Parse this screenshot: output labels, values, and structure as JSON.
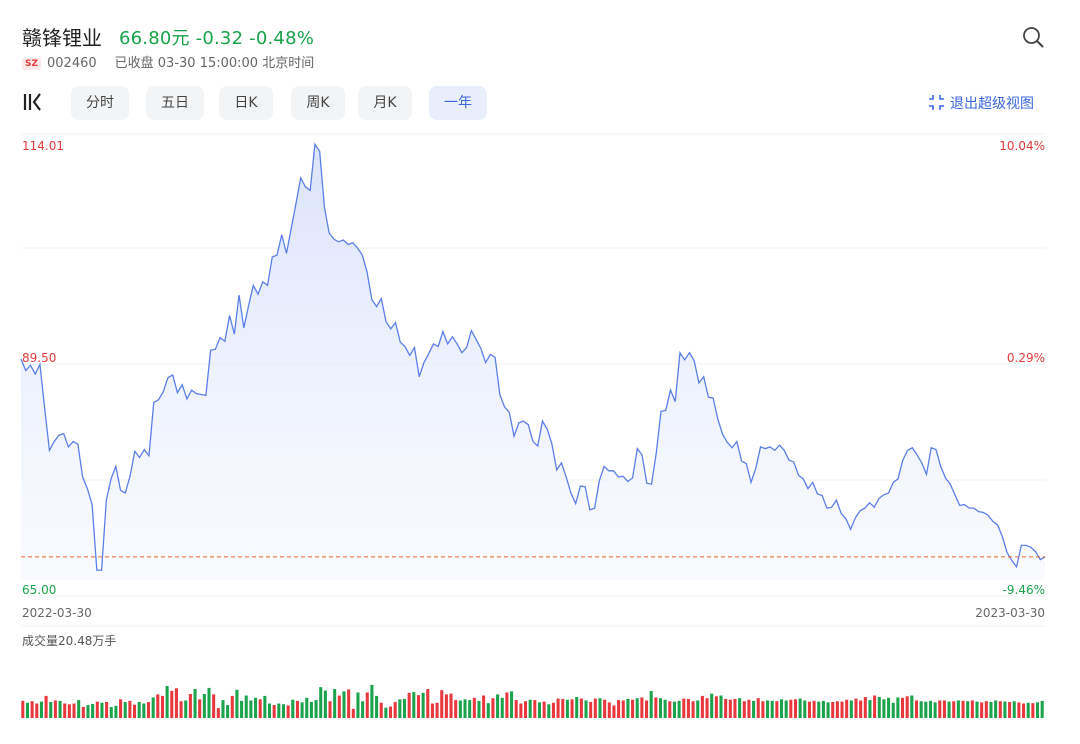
{
  "stock": {
    "name": "赣锋锂业",
    "price_line": "66.80元 -0.32 -0.48%",
    "market": "SZ",
    "code": "002460",
    "status": "已收盘 03-30 15:00:00 北京时间"
  },
  "icons": {
    "search": "search-icon",
    "logo": "kline-logo-icon",
    "fullscreen": "fullscreen-exit-icon"
  },
  "tabs": [
    {
      "label": "分时",
      "active": false
    },
    {
      "label": "五日",
      "active": false
    },
    {
      "label": "日K",
      "active": false
    },
    {
      "label": "周K",
      "active": false
    },
    {
      "label": "月K",
      "active": false
    },
    {
      "label": "一年",
      "active": true
    }
  ],
  "fullscreen_label": "退出超级视图",
  "colors": {
    "line": "#5b7fe8",
    "up": "#e8383d",
    "down": "#1aa34a",
    "accent": "#3b68e0",
    "prev_close_line": "#e8662b"
  },
  "chart_data": {
    "type": "area",
    "title": "",
    "x_start_label": "2022-03-30",
    "x_end_label": "2023-03-30",
    "y_left_labels": {
      "max": "114.01",
      "mid": "89.50",
      "min": "65.00"
    },
    "y_right_labels": {
      "max": "10.04%",
      "mid": "0.29%",
      "min": "-9.46%"
    },
    "ylim": [
      65.0,
      114.01
    ],
    "reference_line": 67.6,
    "grid": true,
    "series": [
      {
        "values": [
          89.9,
          88.6,
          89.2,
          88.2,
          89.3,
          84.3,
          79.6,
          80.6,
          81.3,
          81.5,
          80.0,
          80.6,
          80.3,
          76.6,
          75.3,
          73.5,
          66.1,
          66.1,
          74.0,
          76.4,
          77.8,
          75.1,
          74.8,
          76.7,
          79.5,
          78.8,
          79.7,
          79.0,
          85.0,
          85.3,
          86.2,
          87.8,
          88.1,
          86.1,
          87.0,
          85.4,
          86.4,
          86.0,
          85.9,
          85.8,
          90.9,
          91.0,
          92.3,
          91.9,
          94.8,
          92.7,
          97.1,
          93.4,
          95.9,
          98.2,
          97.2,
          98.6,
          98.2,
          101.4,
          101.6,
          103.9,
          101.8,
          104.6,
          107.4,
          110.3,
          109.3,
          108.9,
          114.1,
          113.3,
          107.0,
          104.1,
          103.4,
          103.1,
          103.3,
          102.8,
          103.0,
          102.4,
          101.6,
          99.7,
          96.6,
          95.8,
          96.7,
          94.1,
          93.3,
          94.0,
          91.8,
          91.3,
          90.3,
          91.2,
          87.9,
          89.5,
          90.5,
          91.6,
          91.3,
          93.0,
          91.6,
          92.4,
          91.6,
          90.6,
          91.2,
          93.1,
          92.1,
          91.1,
          89.5,
          90.4,
          90.1,
          85.9,
          84.5,
          83.9,
          81.2,
          82.7,
          82.9,
          82.5,
          80.6,
          80.1,
          82.9,
          82.0,
          80.3,
          77.4,
          78.2,
          76.6,
          74.8,
          73.6,
          75.6,
          75.5,
          72.9,
          73.1,
          76.2,
          77.8,
          77.3,
          77.3,
          76.6,
          76.7,
          76.1,
          76.5,
          79.8,
          79.1,
          75.9,
          75.8,
          79.3,
          84.0,
          84.1,
          86.4,
          85.1,
          90.6,
          89.8,
          90.6,
          89.7,
          87.2,
          87.9,
          85.6,
          85.5,
          83.1,
          81.4,
          80.5,
          79.9,
          80.6,
          78.4,
          78.1,
          76.0,
          77.6,
          80.0,
          79.8,
          80.0,
          79.6,
          80.2,
          79.6,
          78.5,
          78.3,
          76.8,
          76.4,
          75.3,
          76.0,
          74.7,
          74.5,
          73.1,
          73.2,
          74.0,
          72.5,
          71.9,
          70.7,
          72.0,
          72.8,
          73.1,
          73.7,
          73.2,
          74.2,
          74.6,
          74.8,
          76.0,
          76.4,
          78.5,
          79.6,
          79.9,
          79.1,
          78.2,
          76.9,
          79.9,
          79.7,
          77.8,
          76.5,
          75.8,
          74.6,
          73.4,
          73.5,
          73.1,
          73.1,
          72.7,
          72.6,
          72.3,
          71.6,
          71.2,
          69.9,
          68.1,
          67.2,
          66.5,
          68.9,
          68.9,
          68.7,
          68.2,
          67.3,
          67.6
        ]
      }
    ],
    "volume": {
      "label": "成交量20.48万手",
      "ylim": [
        0,
        20.48
      ],
      "bars": [
        [
          4.5,
          1
        ],
        [
          4.0,
          0
        ],
        [
          4.4,
          1
        ],
        [
          3.8,
          1
        ],
        [
          4.3,
          0
        ],
        [
          5.8,
          1
        ],
        [
          4.2,
          0
        ],
        [
          4.6,
          1
        ],
        [
          4.5,
          0
        ],
        [
          3.8,
          1
        ],
        [
          3.6,
          1
        ],
        [
          3.8,
          1
        ],
        [
          4.7,
          0
        ],
        [
          2.9,
          1
        ],
        [
          3.4,
          0
        ],
        [
          3.7,
          0
        ],
        [
          4.3,
          1
        ],
        [
          4.0,
          0
        ],
        [
          4.2,
          1
        ],
        [
          2.9,
          0
        ],
        [
          3.2,
          0
        ],
        [
          4.9,
          1
        ],
        [
          4.2,
          0
        ],
        [
          4.5,
          1
        ],
        [
          3.5,
          1
        ],
        [
          4.2,
          0
        ],
        [
          3.8,
          0
        ],
        [
          4.2,
          1
        ],
        [
          5.4,
          0
        ],
        [
          6.2,
          1
        ],
        [
          5.8,
          1
        ],
        [
          8.4,
          0
        ],
        [
          7.1,
          1
        ],
        [
          7.8,
          1
        ],
        [
          4.4,
          1
        ],
        [
          4.6,
          0
        ],
        [
          6.3,
          1
        ],
        [
          7.6,
          0
        ],
        [
          4.9,
          1
        ],
        [
          6.3,
          0
        ],
        [
          7.9,
          0
        ],
        [
          6.2,
          1
        ],
        [
          2.6,
          1
        ],
        [
          4.7,
          0
        ],
        [
          3.4,
          0
        ],
        [
          5.8,
          1
        ],
        [
          7.4,
          0
        ],
        [
          4.5,
          0
        ],
        [
          5.9,
          0
        ],
        [
          4.6,
          0
        ],
        [
          5.3,
          0
        ],
        [
          4.9,
          1
        ],
        [
          5.8,
          0
        ],
        [
          3.8,
          0
        ],
        [
          3.4,
          1
        ],
        [
          3.8,
          0
        ],
        [
          3.6,
          0
        ],
        [
          3.3,
          1
        ],
        [
          4.8,
          0
        ],
        [
          4.5,
          1
        ],
        [
          4.1,
          0
        ],
        [
          5.3,
          0
        ],
        [
          4.2,
          0
        ],
        [
          4.7,
          0
        ],
        [
          8.1,
          0
        ],
        [
          7.2,
          0
        ],
        [
          4.4,
          1
        ],
        [
          7.6,
          0
        ],
        [
          5.9,
          1
        ],
        [
          7.0,
          0
        ],
        [
          7.5,
          1
        ],
        [
          2.4,
          1
        ],
        [
          6.7,
          0
        ],
        [
          4.4,
          0
        ],
        [
          6.7,
          1
        ],
        [
          8.7,
          0
        ],
        [
          5.8,
          0
        ],
        [
          4.0,
          1
        ],
        [
          2.7,
          0
        ],
        [
          3.0,
          1
        ],
        [
          4.2,
          1
        ],
        [
          4.9,
          0
        ],
        [
          5.0,
          0
        ],
        [
          6.6,
          1
        ],
        [
          6.8,
          0
        ],
        [
          6.0,
          1
        ],
        [
          6.6,
          0
        ],
        [
          7.6,
          1
        ],
        [
          3.8,
          1
        ],
        [
          4.0,
          1
        ],
        [
          7.3,
          1
        ],
        [
          6.2,
          1
        ],
        [
          6.4,
          1
        ],
        [
          4.7,
          1
        ],
        [
          4.6,
          0
        ],
        [
          4.9,
          0
        ],
        [
          4.7,
          0
        ],
        [
          5.3,
          1
        ],
        [
          4.5,
          0
        ],
        [
          5.9,
          1
        ],
        [
          3.9,
          0
        ],
        [
          5.2,
          1
        ],
        [
          6.2,
          0
        ],
        [
          5.3,
          0
        ],
        [
          6.7,
          1
        ],
        [
          7.0,
          0
        ],
        [
          4.7,
          1
        ],
        [
          3.8,
          1
        ],
        [
          4.4,
          1
        ],
        [
          4.8,
          0
        ],
        [
          4.7,
          1
        ],
        [
          4.1,
          0
        ],
        [
          4.3,
          1
        ],
        [
          3.6,
          0
        ],
        [
          4.0,
          1
        ],
        [
          5.1,
          1
        ],
        [
          5.0,
          1
        ],
        [
          4.8,
          0
        ],
        [
          4.9,
          1
        ],
        [
          5.5,
          0
        ],
        [
          5.1,
          1
        ],
        [
          4.6,
          0
        ],
        [
          4.2,
          1
        ],
        [
          5.1,
          1
        ],
        [
          5.2,
          0
        ],
        [
          4.8,
          1
        ],
        [
          4.1,
          1
        ],
        [
          3.3,
          1
        ],
        [
          4.7,
          1
        ],
        [
          4.6,
          1
        ],
        [
          5.0,
          0
        ],
        [
          4.8,
          1
        ],
        [
          5.2,
          0
        ],
        [
          5.4,
          1
        ],
        [
          4.6,
          1
        ],
        [
          7.1,
          0
        ],
        [
          5.4,
          1
        ],
        [
          5.2,
          0
        ],
        [
          4.8,
          0
        ],
        [
          4.4,
          1
        ],
        [
          4.3,
          0
        ],
        [
          4.5,
          0
        ],
        [
          5.1,
          1
        ],
        [
          5.0,
          1
        ],
        [
          4.4,
          1
        ],
        [
          4.6,
          0
        ],
        [
          5.8,
          1
        ],
        [
          5.2,
          1
        ],
        [
          6.4,
          0
        ],
        [
          5.7,
          1
        ],
        [
          5.9,
          0
        ],
        [
          5.0,
          1
        ],
        [
          4.8,
          1
        ],
        [
          5.0,
          1
        ],
        [
          5.2,
          0
        ],
        [
          4.4,
          1
        ],
        [
          4.8,
          1
        ],
        [
          4.5,
          0
        ],
        [
          5.2,
          1
        ],
        [
          4.4,
          1
        ],
        [
          4.6,
          0
        ],
        [
          4.5,
          0
        ],
        [
          4.4,
          1
        ],
        [
          4.9,
          0
        ],
        [
          4.6,
          0
        ],
        [
          4.8,
          1
        ],
        [
          4.9,
          1
        ],
        [
          5.1,
          0
        ],
        [
          4.6,
          0
        ],
        [
          4.3,
          1
        ],
        [
          4.5,
          1
        ],
        [
          4.3,
          0
        ],
        [
          4.5,
          0
        ],
        [
          4.1,
          0
        ],
        [
          4.2,
          1
        ],
        [
          4.4,
          1
        ],
        [
          4.3,
          1
        ],
        [
          4.8,
          1
        ],
        [
          4.6,
          0
        ],
        [
          5.1,
          1
        ],
        [
          4.6,
          1
        ],
        [
          5.5,
          1
        ],
        [
          4.7,
          0
        ],
        [
          5.9,
          1
        ],
        [
          5.5,
          0
        ],
        [
          4.9,
          0
        ],
        [
          5.3,
          0
        ],
        [
          4.0,
          0
        ],
        [
          5.4,
          0
        ],
        [
          5.3,
          1
        ],
        [
          5.7,
          1
        ],
        [
          5.9,
          0
        ],
        [
          4.6,
          1
        ],
        [
          4.4,
          0
        ],
        [
          4.3,
          0
        ],
        [
          4.5,
          0
        ],
        [
          4.1,
          0
        ],
        [
          4.6,
          1
        ],
        [
          4.6,
          1
        ],
        [
          4.3,
          0
        ],
        [
          4.4,
          1
        ],
        [
          4.6,
          0
        ],
        [
          4.5,
          1
        ],
        [
          4.4,
          0
        ],
        [
          4.6,
          1
        ],
        [
          4.3,
          0
        ],
        [
          4.1,
          1
        ],
        [
          4.4,
          1
        ],
        [
          4.2,
          0
        ],
        [
          4.6,
          0
        ],
        [
          4.4,
          1
        ],
        [
          4.3,
          0
        ],
        [
          4.2,
          1
        ],
        [
          4.4,
          0
        ],
        [
          4.1,
          1
        ],
        [
          3.8,
          1
        ],
        [
          4.0,
          0
        ],
        [
          3.9,
          1
        ],
        [
          4.1,
          0
        ],
        [
          4.5,
          0
        ]
      ]
    }
  }
}
